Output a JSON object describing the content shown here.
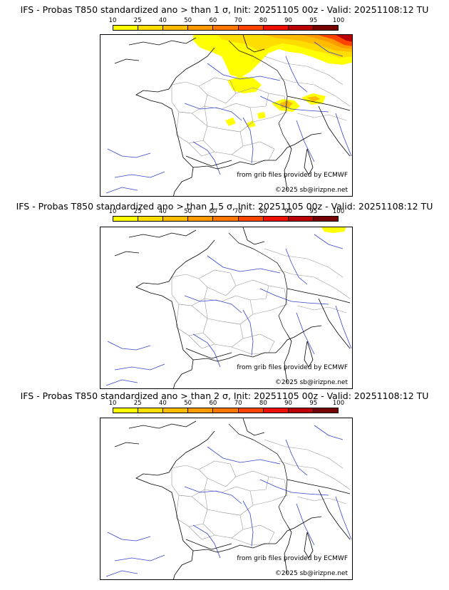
{
  "colorbar": {
    "ticks": [
      "10",
      "25",
      "40",
      "50",
      "60",
      "70",
      "80",
      "90",
      "95",
      "100"
    ],
    "colors": [
      "#ffff00",
      "#ffdd00",
      "#ffbb00",
      "#ff9900",
      "#ff7700",
      "#ff4400",
      "#ee1100",
      "#bb0000",
      "#770000"
    ]
  },
  "panels": [
    {
      "title": "IFS - Probas T850  standardized ano > than 1 σ, Init: 20251105 00z - Valid: 20251108:12 TU",
      "credit_source": "from grib files provided by ECMWF",
      "credit_copyright": "©2025 sb@irizpne.net"
    },
    {
      "title": "IFS - Probas T850  standardized ano > than 1.5 σ, Init: 20251105 00z - Valid: 20251108:12 TU",
      "credit_source": "from grib files provided by ECMWF",
      "credit_copyright": "©2025 sb@irizpne.net"
    },
    {
      "title": "IFS - Probas T850  standardized ano > than 2 σ, Init: 20251105 00z - Valid: 20251108:12 TU",
      "credit_source": "from grib files provided by ECMWF",
      "credit_copyright": "©2025 sb@irizpne.net"
    }
  ]
}
